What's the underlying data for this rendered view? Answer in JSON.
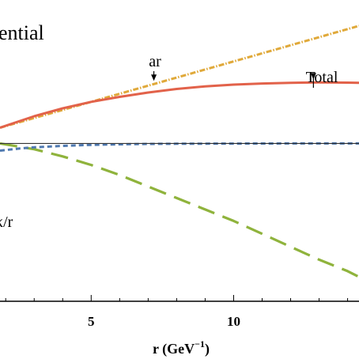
{
  "chart_data": {
    "type": "line",
    "title": "ential",
    "xlabel": "r  (GeV",
    "xlabel_sup": "−1",
    "xlabel_close": ")",
    "x_ticks": [
      5,
      10
    ],
    "xlim": [
      1.8,
      14.4
    ],
    "ylim": [
      -1.1,
      1.0
    ],
    "grid": false,
    "zero_line": true,
    "series": [
      {
        "name": "ar",
        "color": "#e0a93a",
        "style": "dotdash",
        "x": [
          1.8,
          14.4
        ],
        "y": [
          0.11,
          0.82
        ]
      },
      {
        "name": "Total",
        "color": "#e2624a",
        "style": "solid",
        "x": [
          1.8,
          3,
          4,
          5,
          6,
          7,
          8,
          9,
          10,
          11,
          12,
          13,
          14,
          14.4
        ],
        "y": [
          0.11,
          0.19,
          0.245,
          0.29,
          0.325,
          0.355,
          0.38,
          0.398,
          0.41,
          0.418,
          0.423,
          0.425,
          0.424,
          0.423
        ]
      },
      {
        "name": "κ/r",
        "color": "#8fb33c",
        "style": "longdash",
        "x": [
          1.8,
          3,
          4,
          5,
          6,
          7,
          8,
          9,
          10,
          11,
          12,
          13,
          14,
          14.4
        ],
        "y": [
          0.0,
          -0.04,
          -0.09,
          -0.15,
          -0.22,
          -0.3,
          -0.38,
          -0.46,
          -0.54,
          -0.63,
          -0.72,
          -0.81,
          -0.89,
          -0.93
        ]
      },
      {
        "name": "",
        "color": "#4f79b0",
        "style": "shortdash",
        "x": [
          1.8,
          2.5,
          3,
          4,
          5,
          6,
          7,
          8,
          10,
          12,
          14.4
        ],
        "y": [
          -0.05,
          -0.035,
          -0.027,
          -0.017,
          -0.01,
          -0.006,
          -0.003,
          -0.002,
          -0.001,
          0.0,
          0.0
        ]
      }
    ],
    "annotations": [
      {
        "text": "ar",
        "arrow_to_x": 7.2
      },
      {
        "text": "Total",
        "arrow_to_x": 12.8
      },
      {
        "text": "κ/r"
      }
    ]
  }
}
